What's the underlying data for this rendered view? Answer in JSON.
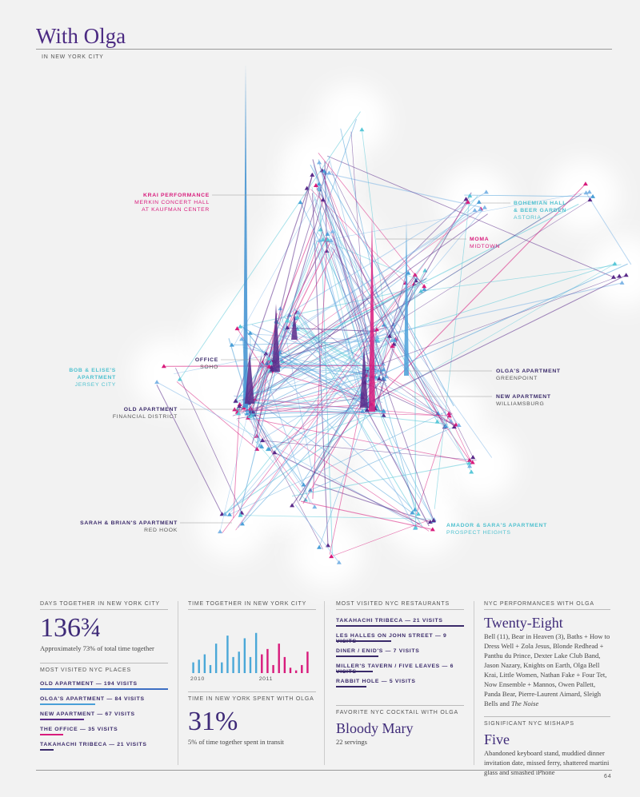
{
  "header": {
    "title": "With Olga",
    "subtitle": "IN NEW YORK CITY"
  },
  "map": {
    "labels": [
      {
        "lines": [
          "KRAI PERFORMANCE"
        ],
        "sublines": [
          "MERKIN CONCERT HALL",
          "AT KAUFMAN CENTER"
        ],
        "color": "#d81b7c"
      },
      {
        "lines": [
          "BOHEMIAN HALL",
          "& BEER GARDEN"
        ],
        "sublines": [
          "ASTORIA"
        ],
        "color": "#4fc1cf"
      },
      {
        "lines": [
          "MOMA"
        ],
        "sublines": [
          "MIDTOWN"
        ],
        "color": "#d81b7c"
      },
      {
        "lines": [
          "OFFICE"
        ],
        "sublines": [
          "SOHO"
        ],
        "color": "#3a2a6a"
      },
      {
        "lines": [
          "BOB & ELISE'S",
          "APARTMENT"
        ],
        "sublines": [
          "JERSEY CITY"
        ],
        "color": "#4fc1cf"
      },
      {
        "lines": [
          "OLD APARTMENT"
        ],
        "sublines": [
          "FINANCIAL DISTRICT"
        ],
        "color": "#3a2a6a"
      },
      {
        "lines": [
          "OLGA'S APARTMENT"
        ],
        "sublines": [
          "GREENPOINT"
        ],
        "color": "#3a2a6a"
      },
      {
        "lines": [
          "NEW APARTMENT"
        ],
        "sublines": [
          "WILLIAMSBURG"
        ],
        "color": "#3a2a6a"
      },
      {
        "lines": [
          "SARAH & BRIAN'S APARTMENT"
        ],
        "sublines": [
          "RED HOOK"
        ],
        "color": "#3a2a6a"
      },
      {
        "lines": [
          "AMADOR & SARA'S APARTMENT"
        ],
        "sublines": [
          "PROSPECT HEIGHTS"
        ],
        "color": "#4fc1cf"
      }
    ]
  },
  "panels": {
    "days": {
      "heading": "DAYS TOGETHER IN NEW YORK CITY",
      "value": "136¾",
      "note": "Approximately 73% of total time together"
    },
    "places": {
      "heading": "MOST VISITED NYC PLACES",
      "items": [
        {
          "label": "OLD APARTMENT — 194 VISITS",
          "value": 194,
          "color": "#3d6fc4"
        },
        {
          "label": "OLGA'S APARTMENT — 84 VISITS",
          "value": 84,
          "color": "#4a9fd8"
        },
        {
          "label": "NEW APARTMENT — 67 VISITS",
          "value": 67,
          "color": "#5a2a8a"
        },
        {
          "label": "THE OFFICE — 35 VISITS",
          "value": 35,
          "color": "#d81b7c"
        },
        {
          "label": "TAKAHACHI TRIBECA — 21 VISITS",
          "value": 21,
          "color": "#3a2a6a"
        }
      ]
    },
    "transit": {
      "heading": "TIME IN NEW YORK SPENT WITH OLGA",
      "value": "31%",
      "note": "5% of time together spent in transit"
    },
    "restaurants": {
      "heading": "MOST VISITED NYC RESTAURANTS",
      "items": [
        {
          "label": "TAKAHACHI TRIBECA — 21 VISITS",
          "value": 21,
          "color": "#3a2a6a"
        },
        {
          "label": "LES HALLES ON JOHN STREET — 9 VISITS",
          "value": 9,
          "color": "#3a2a6a"
        },
        {
          "label": "DINER / ENID'S — 7 VISITS",
          "value": 7,
          "color": "#3a2a6a"
        },
        {
          "label": "MILLER'S TAVERN / FIVE LEAVES — 6 VISITS",
          "value": 6,
          "color": "#3a2a6a"
        },
        {
          "label": "RABBIT HOLE — 5 VISITS",
          "value": 5,
          "color": "#3a2a6a"
        }
      ]
    },
    "cocktail": {
      "heading": "FAVORITE NYC COCKTAIL WITH OLGA",
      "value": "Bloody Mary",
      "note": "22 servings"
    },
    "performances": {
      "heading": "NYC PERFORMANCES WITH OLGA",
      "value": "Twenty-Eight",
      "text": "Bell (11), Bear in Heaven (3), Baths + How to Dress Well + Zola Jesus, Blonde Redhead + Panthu du Prince, Dexter Lake Club Band, Jason Nazary, Knights on Earth, Olga Bell Krai, Little Women, Nathan Fake + Four Tet, Now Ensemble + Mannos, Owen Pallett, Panda Bear, Pierre-Laurent Aimard, Sleigh Bells and ",
      "text_italic": "The Noise"
    },
    "mishaps": {
      "heading": "SIGNIFICANT NYC MISHAPS",
      "value": "Five",
      "text": "Abandoned keyboard stand, muddied dinner invitation date, missed ferry, shattered martini glass and smashed iPhone"
    }
  },
  "page_number": "64",
  "chart_data": {
    "type": "bar",
    "title": "TIME TOGETHER IN NEW YORK CITY",
    "categories": [
      "2010",
      null,
      null,
      null,
      null,
      null,
      null,
      null,
      null,
      null,
      null,
      null,
      "2011",
      null,
      null,
      null,
      null,
      null,
      null,
      null,
      null
    ],
    "series": [
      {
        "color": "#4aa8d8",
        "values": [
          20,
          25,
          35,
          15,
          55,
          20,
          70,
          30,
          40,
          65,
          30,
          75,
          null,
          null,
          null,
          null,
          null,
          null,
          null,
          null,
          null
        ]
      },
      {
        "color": "#d81b7c",
        "values": [
          null,
          null,
          null,
          null,
          null,
          null,
          null,
          null,
          null,
          null,
          null,
          null,
          35,
          45,
          15,
          55,
          30,
          10,
          5,
          15,
          40
        ]
      }
    ],
    "ylim": [
      0,
      100
    ]
  }
}
